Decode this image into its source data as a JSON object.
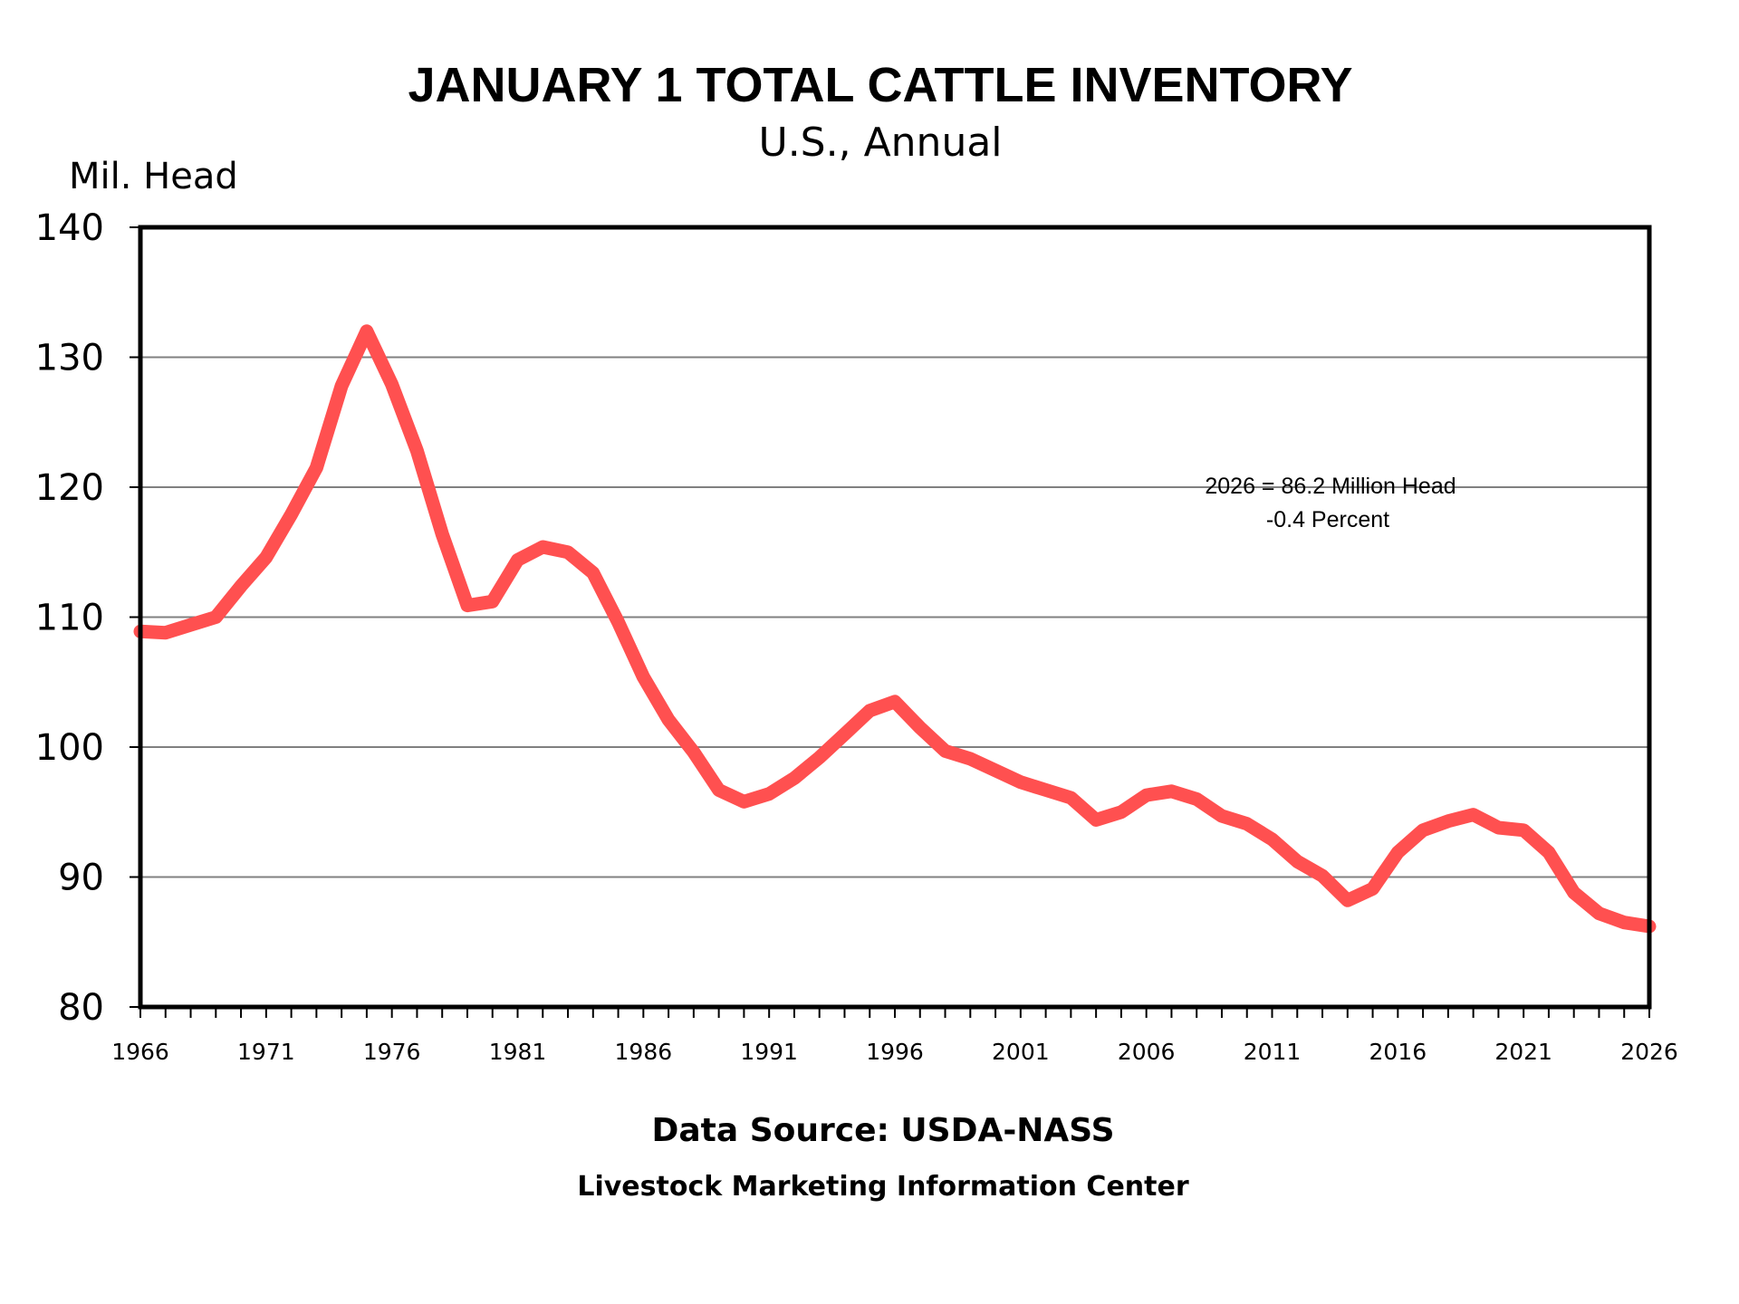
{
  "chart_data": {
    "type": "line",
    "title": "JANUARY 1 TOTAL CATTLE INVENTORY",
    "subtitle": "U.S., Annual",
    "ylabel": "Mil. Head",
    "xlabel": "",
    "ylim": [
      80,
      140
    ],
    "yticks": [
      80,
      90,
      100,
      110,
      120,
      130,
      140
    ],
    "xlim": [
      1966,
      2026
    ],
    "xtick_labels": [
      "1966",
      "1971",
      "1976",
      "1981",
      "1986",
      "1991",
      "1996",
      "2001",
      "2006",
      "2011",
      "2016",
      "2021",
      "2026"
    ],
    "grid": "horizontal",
    "series": [
      {
        "name": "Total Cattle Inventory",
        "color": "#ff5050",
        "x": [
          1966,
          1967,
          1968,
          1969,
          1970,
          1971,
          1972,
          1973,
          1974,
          1975,
          1976,
          1977,
          1978,
          1979,
          1980,
          1981,
          1982,
          1983,
          1984,
          1985,
          1986,
          1987,
          1988,
          1989,
          1990,
          1991,
          1992,
          1993,
          1994,
          1995,
          1996,
          1997,
          1998,
          1999,
          2000,
          2001,
          2002,
          2003,
          2004,
          2005,
          2006,
          2007,
          2008,
          2009,
          2010,
          2011,
          2012,
          2013,
          2014,
          2015,
          2016,
          2017,
          2018,
          2019,
          2020,
          2021,
          2022,
          2023,
          2024,
          2025,
          2026
        ],
        "values": [
          108.9,
          108.8,
          109.4,
          110.0,
          112.4,
          114.6,
          117.9,
          121.5,
          127.8,
          132.0,
          127.9,
          122.8,
          116.4,
          110.9,
          111.2,
          114.4,
          115.4,
          115.0,
          113.4,
          109.6,
          105.4,
          102.1,
          99.6,
          96.7,
          95.8,
          96.4,
          97.6,
          99.2,
          101.0,
          102.8,
          103.5,
          101.5,
          99.7,
          99.1,
          98.2,
          97.3,
          96.7,
          96.1,
          94.4,
          95.0,
          96.3,
          96.6,
          96.0,
          94.7,
          94.1,
          92.9,
          91.2,
          90.1,
          88.2,
          89.1,
          91.9,
          93.6,
          94.3,
          94.8,
          93.8,
          93.6,
          91.9,
          88.8,
          87.2,
          86.5,
          86.2
        ]
      }
    ],
    "annotation": {
      "line1": "2026 = 86.2 Million Head",
      "line2": "-0.4 Percent"
    },
    "footer": {
      "source": "Data Source:  USDA-NASS",
      "organization": "Livestock Marketing Information Center"
    }
  }
}
